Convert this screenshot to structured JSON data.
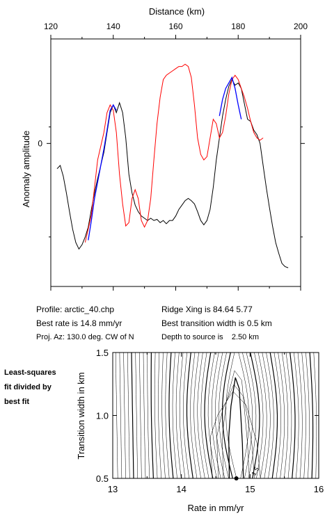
{
  "chart_data": [
    {
      "type": "line",
      "xlabel": "Distance (km)",
      "ylabel": "Anomaly amplitude",
      "xlim": [
        120,
        200
      ],
      "ylim": [
        -1.3,
        0.95
      ],
      "x_ticks": [
        "120",
        "140",
        "160",
        "180",
        "200"
      ],
      "y_ticks": [
        "0"
      ],
      "grid": false,
      "series": [
        {
          "color": "#000000",
          "role": "observed",
          "x": [
            122,
            123,
            124,
            125,
            126,
            127,
            128,
            129,
            130,
            131,
            132,
            133,
            134,
            135,
            136,
            137,
            138,
            139,
            140,
            141,
            142,
            143,
            144,
            145,
            146,
            147,
            148,
            149,
            150,
            151,
            152,
            153,
            154,
            155,
            156,
            157,
            158,
            159,
            160,
            161,
            162,
            163,
            164,
            165,
            166,
            167,
            168,
            169,
            170,
            171,
            172,
            173,
            174,
            175,
            176,
            177,
            178,
            179,
            180,
            181,
            182,
            183,
            184,
            185,
            186,
            187,
            188,
            189,
            190,
            191,
            192,
            193,
            194,
            195,
            196
          ],
          "y": [
            -0.23,
            -0.2,
            -0.3,
            -0.45,
            -0.62,
            -0.78,
            -0.9,
            -0.96,
            -0.92,
            -0.85,
            -0.76,
            -0.6,
            -0.45,
            -0.32,
            -0.2,
            -0.08,
            0.1,
            0.28,
            0.35,
            0.28,
            0.37,
            0.28,
            0.05,
            -0.28,
            -0.45,
            -0.56,
            -0.62,
            -0.66,
            -0.68,
            -0.7,
            -0.68,
            -0.7,
            -0.69,
            -0.72,
            -0.7,
            -0.73,
            -0.7,
            -0.7,
            -0.66,
            -0.6,
            -0.56,
            -0.52,
            -0.5,
            -0.52,
            -0.55,
            -0.62,
            -0.7,
            -0.74,
            -0.7,
            -0.6,
            -0.4,
            -0.15,
            0.05,
            0.25,
            0.4,
            0.52,
            0.58,
            0.53,
            0.55,
            0.5,
            0.36,
            0.22,
            0.2,
            0.12,
            0.08,
            0.0,
            -0.2,
            -0.4,
            -0.58,
            -0.75,
            -0.9,
            -1.0,
            -1.09,
            -1.12,
            -1.13
          ]
        },
        {
          "color": "#ff0000",
          "role": "model",
          "x": [
            131,
            133,
            135,
            137,
            138,
            139,
            140,
            141,
            142,
            143,
            144,
            145,
            146,
            147,
            148,
            149,
            150,
            151,
            152,
            153,
            154,
            155,
            156,
            157,
            158,
            159,
            160,
            161,
            162,
            163,
            164,
            165,
            166,
            167,
            168,
            169,
            170,
            171,
            172,
            173,
            174,
            175,
            176,
            177,
            178,
            179,
            180,
            181,
            182,
            183,
            184,
            185,
            186,
            187,
            188
          ],
          "y": [
            -0.9,
            -0.65,
            -0.15,
            0.1,
            0.28,
            0.35,
            0.3,
            0.1,
            -0.28,
            -0.55,
            -0.75,
            -0.72,
            -0.5,
            -0.42,
            -0.5,
            -0.7,
            -0.76,
            -0.7,
            -0.5,
            -0.15,
            0.18,
            0.42,
            0.58,
            0.62,
            0.64,
            0.66,
            0.68,
            0.7,
            0.7,
            0.72,
            0.7,
            0.6,
            0.35,
            0.05,
            -0.1,
            -0.15,
            -0.12,
            0.05,
            0.22,
            0.18,
            0.05,
            0.1,
            0.25,
            0.45,
            0.58,
            0.62,
            0.58,
            0.5,
            0.42,
            0.32,
            0.2,
            0.1,
            0.05,
            0.03,
            0.05
          ]
        },
        {
          "color": "#0000ff",
          "role": "fit window",
          "x": [
            132,
            133,
            134,
            135,
            136,
            137,
            138,
            139,
            140,
            141,
            174,
            175,
            176,
            177,
            178,
            179,
            180,
            181
          ],
          "y": [
            -0.88,
            -0.7,
            -0.5,
            -0.35,
            -0.2,
            -0.05,
            0.12,
            0.3,
            0.35,
            0.3,
            0.25,
            0.4,
            0.5,
            0.55,
            0.6,
            0.5,
            0.35,
            0.22
          ]
        }
      ]
    },
    {
      "type": "contour",
      "xlabel": "Rate in mm/yr",
      "ylabel": "Transition width in km",
      "xlim": [
        13,
        16
      ],
      "ylim": [
        0.5,
        1.5
      ],
      "x_ticks": [
        "13",
        "14",
        "15",
        "16"
      ],
      "y_ticks": [
        "0.5",
        "1.0",
        "1.5"
      ],
      "minimum": {
        "x": 14.8,
        "y": 0.5
      },
      "min_contour_label": "1.5",
      "grid": false
    }
  ],
  "info": {
    "profile": "Profile: arctic_40.chp",
    "best_rate": "Best rate is 14.8 mm/yr",
    "proj_az": "Proj. Az: 130.0 deg. CW of N",
    "ridge_xing": "Ridge Xing is 84.64 5.77",
    "best_width": "Best transition width is 0.5 km",
    "depth": "Depth to source is    2.50 km"
  },
  "side_note": [
    "Least-squares",
    "fit divided by",
    "best fit"
  ]
}
